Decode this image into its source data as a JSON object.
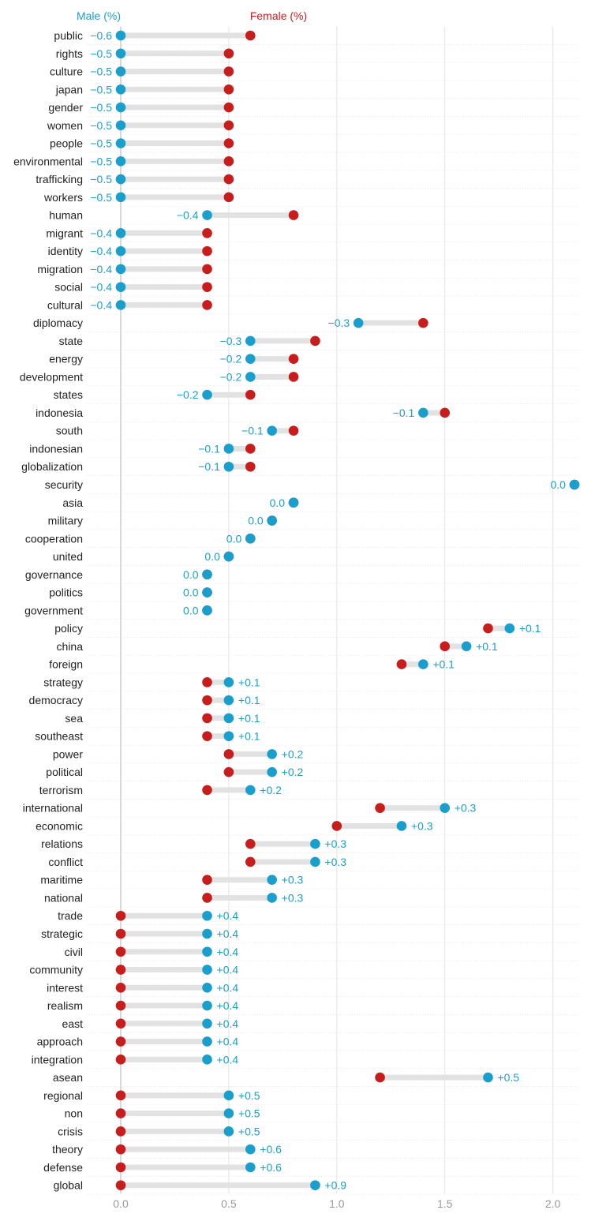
{
  "colors": {
    "male": "#1a9fcc",
    "female": "#c71e1d"
  },
  "chart_data": {
    "type": "dumbbell",
    "title": "",
    "xlabel": "",
    "ylabel": "",
    "xlim": [
      0,
      2.1
    ],
    "xticks": [
      0,
      0.5,
      1,
      1.5,
      2
    ],
    "xtick_labels": [
      "0.0",
      "0.5",
      "1.0",
      "1.5",
      "2.0"
    ],
    "legend": {
      "male": "Male (%)",
      "female": "Female (%)",
      "position": "top"
    },
    "rows": [
      {
        "term": "public",
        "male": 0.0,
        "female": 0.6,
        "diff": "−0.6"
      },
      {
        "term": "rights",
        "male": 0.0,
        "female": 0.5,
        "diff": "−0.5"
      },
      {
        "term": "culture",
        "male": 0.0,
        "female": 0.5,
        "diff": "−0.5"
      },
      {
        "term": "japan",
        "male": 0.0,
        "female": 0.5,
        "diff": "−0.5"
      },
      {
        "term": "gender",
        "male": 0.0,
        "female": 0.5,
        "diff": "−0.5"
      },
      {
        "term": "women",
        "male": 0.0,
        "female": 0.5,
        "diff": "−0.5"
      },
      {
        "term": "people",
        "male": 0.0,
        "female": 0.5,
        "diff": "−0.5"
      },
      {
        "term": "environmental",
        "male": 0.0,
        "female": 0.5,
        "diff": "−0.5"
      },
      {
        "term": "trafficking",
        "male": 0.0,
        "female": 0.5,
        "diff": "−0.5"
      },
      {
        "term": "workers",
        "male": 0.0,
        "female": 0.5,
        "diff": "−0.5"
      },
      {
        "term": "human",
        "male": 0.4,
        "female": 0.8,
        "diff": "−0.4"
      },
      {
        "term": "migrant",
        "male": 0.0,
        "female": 0.4,
        "diff": "−0.4"
      },
      {
        "term": "identity",
        "male": 0.0,
        "female": 0.4,
        "diff": "−0.4"
      },
      {
        "term": "migration",
        "male": 0.0,
        "female": 0.4,
        "diff": "−0.4"
      },
      {
        "term": "social",
        "male": 0.0,
        "female": 0.4,
        "diff": "−0.4"
      },
      {
        "term": "cultural",
        "male": 0.0,
        "female": 0.4,
        "diff": "−0.4"
      },
      {
        "term": "diplomacy",
        "male": 1.1,
        "female": 1.4,
        "diff": "−0.3"
      },
      {
        "term": "state",
        "male": 0.6,
        "female": 0.9,
        "diff": "−0.3"
      },
      {
        "term": "energy",
        "male": 0.6,
        "female": 0.8,
        "diff": "−0.2"
      },
      {
        "term": "development",
        "male": 0.6,
        "female": 0.8,
        "diff": "−0.2"
      },
      {
        "term": "states",
        "male": 0.4,
        "female": 0.6,
        "diff": "−0.2"
      },
      {
        "term": "indonesia",
        "male": 1.4,
        "female": 1.5,
        "diff": "−0.1"
      },
      {
        "term": "south",
        "male": 0.7,
        "female": 0.8,
        "diff": "−0.1"
      },
      {
        "term": "indonesian",
        "male": 0.5,
        "female": 0.6,
        "diff": "−0.1"
      },
      {
        "term": "globalization",
        "male": 0.5,
        "female": 0.6,
        "diff": "−0.1"
      },
      {
        "term": "security",
        "male": 2.1,
        "female": 2.1,
        "diff": "0.0"
      },
      {
        "term": "asia",
        "male": 0.8,
        "female": 0.8,
        "diff": "0.0"
      },
      {
        "term": "military",
        "male": 0.7,
        "female": 0.7,
        "diff": "0.0"
      },
      {
        "term": "cooperation",
        "male": 0.6,
        "female": 0.6,
        "diff": "0.0"
      },
      {
        "term": "united",
        "male": 0.5,
        "female": 0.5,
        "diff": "0.0"
      },
      {
        "term": "governance",
        "male": 0.4,
        "female": 0.4,
        "diff": "0.0"
      },
      {
        "term": "politics",
        "male": 0.4,
        "female": 0.4,
        "diff": "0.0"
      },
      {
        "term": "government",
        "male": 0.4,
        "female": 0.4,
        "diff": "0.0"
      },
      {
        "term": "policy",
        "male": 1.8,
        "female": 1.7,
        "diff": "+0.1"
      },
      {
        "term": "china",
        "male": 1.6,
        "female": 1.5,
        "diff": "+0.1"
      },
      {
        "term": "foreign",
        "male": 1.4,
        "female": 1.3,
        "diff": "+0.1"
      },
      {
        "term": "strategy",
        "male": 0.5,
        "female": 0.4,
        "diff": "+0.1"
      },
      {
        "term": "democracy",
        "male": 0.5,
        "female": 0.4,
        "diff": "+0.1"
      },
      {
        "term": "sea",
        "male": 0.5,
        "female": 0.4,
        "diff": "+0.1"
      },
      {
        "term": "southeast",
        "male": 0.5,
        "female": 0.4,
        "diff": "+0.1"
      },
      {
        "term": "power",
        "male": 0.7,
        "female": 0.5,
        "diff": "+0.2"
      },
      {
        "term": "political",
        "male": 0.7,
        "female": 0.5,
        "diff": "+0.2"
      },
      {
        "term": "terrorism",
        "male": 0.6,
        "female": 0.4,
        "diff": "+0.2"
      },
      {
        "term": "international",
        "male": 1.5,
        "female": 1.2,
        "diff": "+0.3"
      },
      {
        "term": "economic",
        "male": 1.3,
        "female": 1.0,
        "diff": "+0.3"
      },
      {
        "term": "relations",
        "male": 0.9,
        "female": 0.6,
        "diff": "+0.3"
      },
      {
        "term": "conflict",
        "male": 0.9,
        "female": 0.6,
        "diff": "+0.3"
      },
      {
        "term": "maritime",
        "male": 0.7,
        "female": 0.4,
        "diff": "+0.3"
      },
      {
        "term": "national",
        "male": 0.7,
        "female": 0.4,
        "diff": "+0.3"
      },
      {
        "term": "trade",
        "male": 0.4,
        "female": 0.0,
        "diff": "+0.4"
      },
      {
        "term": "strategic",
        "male": 0.4,
        "female": 0.0,
        "diff": "+0.4"
      },
      {
        "term": "civil",
        "male": 0.4,
        "female": 0.0,
        "diff": "+0.4"
      },
      {
        "term": "community",
        "male": 0.4,
        "female": 0.0,
        "diff": "+0.4"
      },
      {
        "term": "interest",
        "male": 0.4,
        "female": 0.0,
        "diff": "+0.4"
      },
      {
        "term": "realism",
        "male": 0.4,
        "female": 0.0,
        "diff": "+0.4"
      },
      {
        "term": "east",
        "male": 0.4,
        "female": 0.0,
        "diff": "+0.4"
      },
      {
        "term": "approach",
        "male": 0.4,
        "female": 0.0,
        "diff": "+0.4"
      },
      {
        "term": "integration",
        "male": 0.4,
        "female": 0.0,
        "diff": "+0.4"
      },
      {
        "term": "asean",
        "male": 1.7,
        "female": 1.2,
        "diff": "+0.5"
      },
      {
        "term": "regional",
        "male": 0.5,
        "female": 0.0,
        "diff": "+0.5"
      },
      {
        "term": "non",
        "male": 0.5,
        "female": 0.0,
        "diff": "+0.5"
      },
      {
        "term": "crisis",
        "male": 0.5,
        "female": 0.0,
        "diff": "+0.5"
      },
      {
        "term": "theory",
        "male": 0.6,
        "female": 0.0,
        "diff": "+0.6"
      },
      {
        "term": "defense",
        "male": 0.6,
        "female": 0.0,
        "diff": "+0.6"
      },
      {
        "term": "global",
        "male": 0.9,
        "female": 0.0,
        "diff": "+0.9"
      }
    ]
  }
}
